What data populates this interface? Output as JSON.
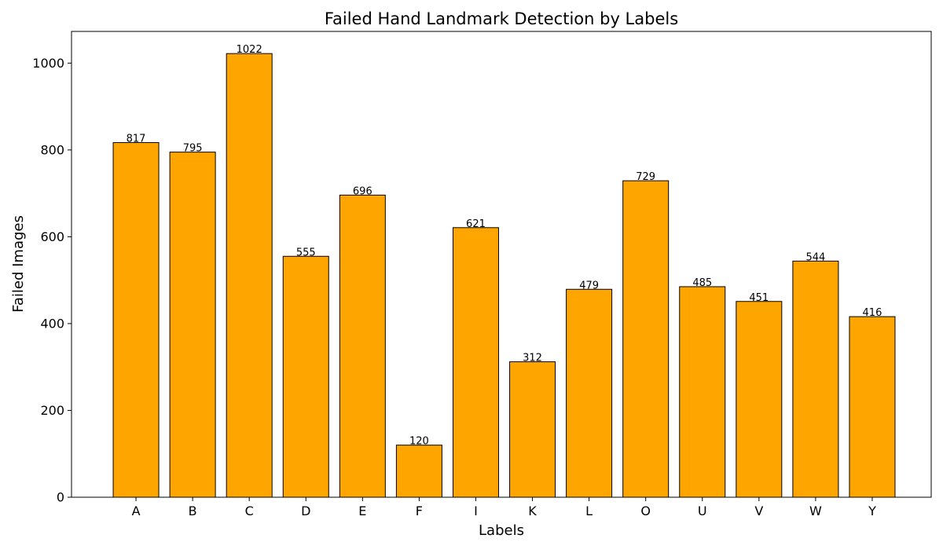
{
  "chart_data": {
    "type": "bar",
    "title": "Failed Hand Landmark Detection by Labels",
    "xlabel": "Labels",
    "ylabel": "Failed Images",
    "categories": [
      "A",
      "B",
      "C",
      "D",
      "E",
      "F",
      "I",
      "K",
      "L",
      "O",
      "U",
      "V",
      "W",
      "Y"
    ],
    "values": [
      817,
      795,
      1022,
      555,
      696,
      120,
      621,
      312,
      479,
      729,
      485,
      451,
      544,
      416
    ],
    "data_labels": [
      "817",
      "795",
      "1022",
      "555",
      "696",
      "120",
      "621",
      "312",
      "479",
      "729",
      "485",
      "451",
      "544",
      "416"
    ],
    "ylim": [
      0,
      1073
    ],
    "yticks": [
      0,
      200,
      400,
      600,
      800,
      1000
    ],
    "ytick_labels": [
      "0",
      "200",
      "400",
      "600",
      "800",
      "1000"
    ],
    "grid": false,
    "legend": "none",
    "bar_color": "#ffa500",
    "bar_edge_color": "#000000"
  }
}
